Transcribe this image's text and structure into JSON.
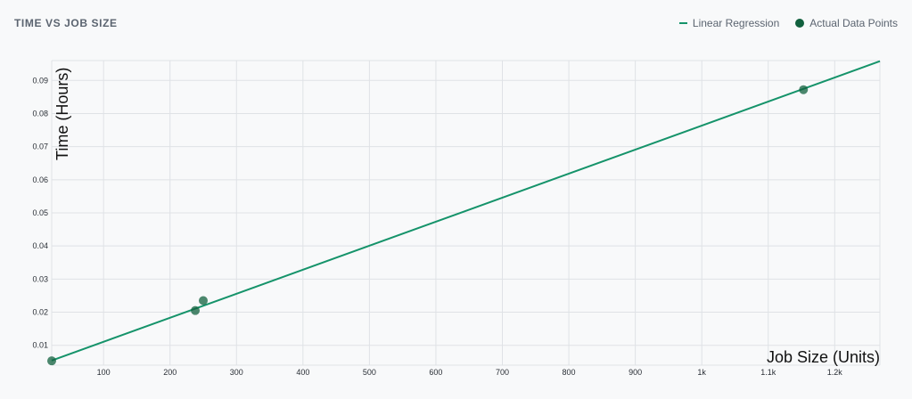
{
  "header": {
    "title": "TIME VS JOB SIZE"
  },
  "legend": {
    "line_label": "Linear Regression",
    "points_label": "Actual Data Points"
  },
  "colors": {
    "regression_line": "#15936a",
    "points": "#11603e",
    "grid": "#dfe2e6",
    "background": "#f8f9fa"
  },
  "chart_data": {
    "type": "scatter",
    "title": "TIME VS JOB SIZE",
    "xlabel": "Job Size (Units)",
    "ylabel": "Time (Hours)",
    "xlim": [
      22,
      1268
    ],
    "ylim": [
      0.004,
      0.096
    ],
    "x_ticks": [
      100,
      200,
      300,
      400,
      500,
      600,
      700,
      800,
      900,
      1000,
      1100,
      1200
    ],
    "x_tick_labels": [
      "100",
      "200",
      "300",
      "400",
      "500",
      "600",
      "700",
      "800",
      "900",
      "1k",
      "1.1k",
      "1.2k"
    ],
    "y_ticks": [
      0.01,
      0.02,
      0.03,
      0.04,
      0.05,
      0.06,
      0.07,
      0.08,
      0.09
    ],
    "y_tick_labels": [
      "0.01",
      "0.02",
      "0.03",
      "0.04",
      "0.05",
      "0.06",
      "0.07",
      "0.08",
      "0.09"
    ],
    "grid": true,
    "legend_position": "top-right",
    "series": [
      {
        "name": "Linear Regression",
        "type": "line",
        "x": [
          22,
          1268
        ],
        "y": [
          0.0054,
          0.0958
        ]
      },
      {
        "name": "Actual Data Points",
        "type": "scatter",
        "x": [
          22,
          238,
          250,
          1153
        ],
        "y": [
          0.0053,
          0.0205,
          0.0235,
          0.0872
        ]
      }
    ]
  }
}
